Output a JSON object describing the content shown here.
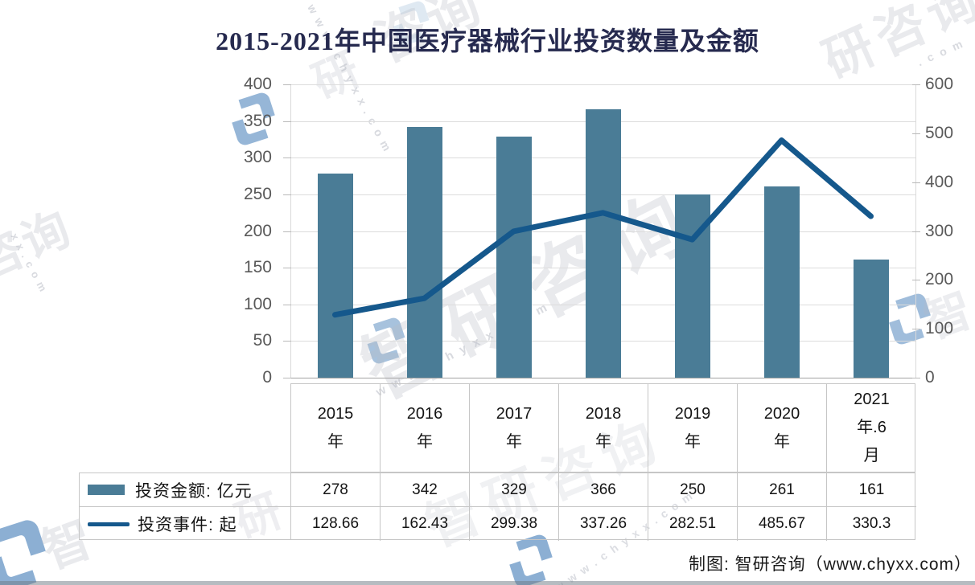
{
  "chart_data": {
    "type": "bar+line",
    "title": "2015-2021年中国医疗器械行业投资数量及金额",
    "categories": [
      "2015年",
      "2016年",
      "2017年",
      "2018年",
      "2019年",
      "2020年",
      "2021年.6月"
    ],
    "category_display": [
      "2015\n年",
      "2016\n年",
      "2017\n年",
      "2018\n年",
      "2019\n年",
      "2020\n年",
      "2021\n年.6\n月"
    ],
    "series": [
      {
        "name": "投资金额: 亿元",
        "type": "bar",
        "axis": "left",
        "color": "#4a7c96",
        "values": [
          278,
          342,
          329,
          366,
          250,
          261,
          161
        ]
      },
      {
        "name": "投资事件: 起",
        "type": "line",
        "axis": "right",
        "color": "#15588c",
        "values": [
          128.66,
          162.43,
          299.38,
          337.26,
          282.51,
          485.67,
          330.3
        ]
      }
    ],
    "left_axis": {
      "min": 0,
      "max": 400,
      "step": 50,
      "ticks": [
        "400",
        "350",
        "300",
        "250",
        "200",
        "150",
        "100",
        "50",
        "0"
      ]
    },
    "right_axis": {
      "min": 0,
      "max": 600,
      "step": 100,
      "ticks": [
        "600",
        "500",
        "400",
        "300",
        "200",
        "100",
        "0"
      ]
    },
    "grid": true,
    "legend_position": "bottom-left table"
  },
  "credit": "制图: 智研咨询（www.chyxx.com）",
  "watermark": {
    "brand": "智研咨询",
    "brand_char": "智",
    "brand_char2": "研",
    "brand_pair": "咨询",
    "brand_trio": "研咨询",
    "url": "www.chyxx.com",
    "url_tail": "xx.com",
    "url_end": ".com"
  },
  "colors": {
    "bar": "#4a7c96",
    "line": "#15588c",
    "title": "#262a4f",
    "axis_text": "#595959",
    "table_text": "#1a1a1a",
    "border": "#c6c6c6",
    "grid": "#dcdcdc",
    "watermark_blue": "#2f6fb0",
    "watermark_gray": "#b9bcc6"
  }
}
